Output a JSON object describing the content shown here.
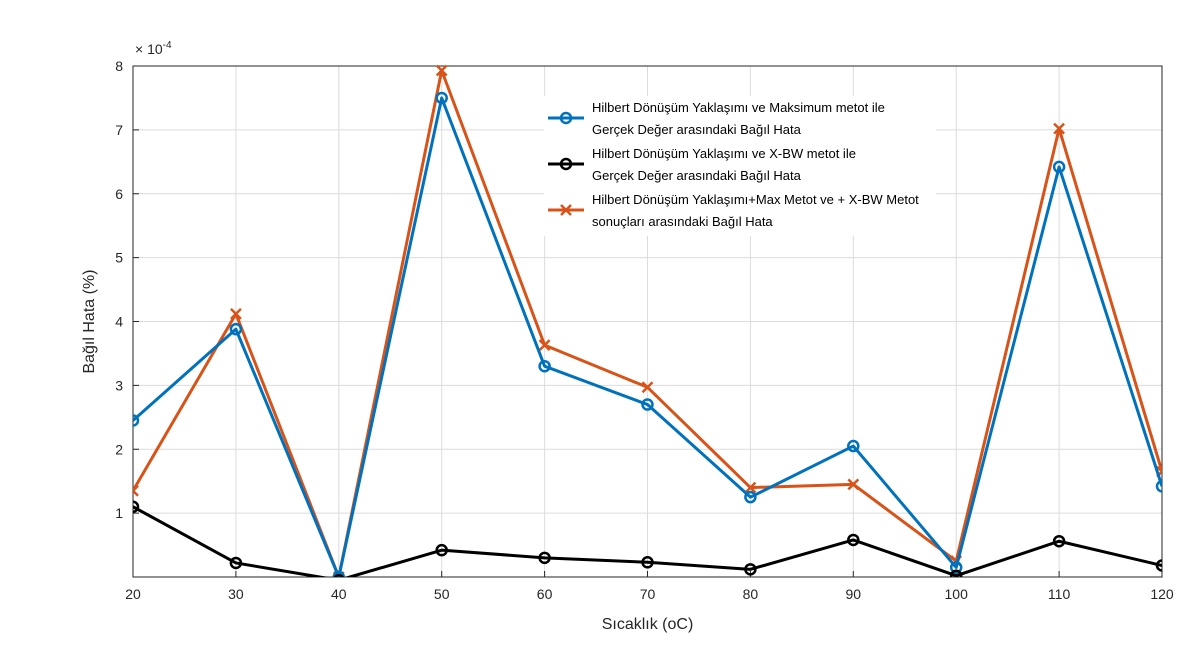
{
  "chart_data": {
    "type": "line",
    "xlabel": "Sıcaklık (oC)",
    "ylabel": "Bağıl Hata (%)",
    "y_exponent_label": "× 10",
    "y_exponent_power": "-4",
    "x": [
      20,
      30,
      40,
      50,
      60,
      70,
      80,
      90,
      100,
      110,
      120
    ],
    "x_ticks": [
      20,
      30,
      40,
      50,
      60,
      70,
      80,
      90,
      100,
      110,
      120
    ],
    "y_ticks": [
      1,
      2,
      3,
      4,
      5,
      6,
      7,
      8
    ],
    "xlim": [
      20,
      120
    ],
    "ylim": [
      0,
      8
    ],
    "grid": true,
    "legend_position": "top-center",
    "series": [
      {
        "name_lines": [
          "Hilbert Dönüşüm Yaklaşımı ve Maksimum metot ile",
          "Gerçek Değer arasındaki Bağıl Hata"
        ],
        "color": "#0072BD",
        "marker": "circle",
        "values": [
          2.45,
          3.88,
          0.0,
          7.5,
          3.3,
          2.7,
          1.25,
          2.05,
          0.15,
          6.42,
          1.42
        ]
      },
      {
        "name_lines": [
          "Hilbert Dönüşüm Yaklaşımı ve X-BW metot ile",
          "Gerçek Değer arasındaki Bağıl Hata"
        ],
        "color": "#000000",
        "marker": "circle",
        "values": [
          1.1,
          0.22,
          -0.05,
          0.42,
          0.3,
          0.23,
          0.12,
          0.58,
          0.02,
          0.56,
          0.18
        ]
      },
      {
        "name_lines": [
          "Hilbert Dönüşüm Yaklaşımı+Max Metot ve + X-BW Metot",
          "sonuçları arasındaki Bağıl Hata"
        ],
        "color": "#D95319",
        "marker": "x",
        "values": [
          1.35,
          4.12,
          0.0,
          7.93,
          3.63,
          2.97,
          1.4,
          1.45,
          0.25,
          7.02,
          1.65
        ]
      }
    ]
  }
}
